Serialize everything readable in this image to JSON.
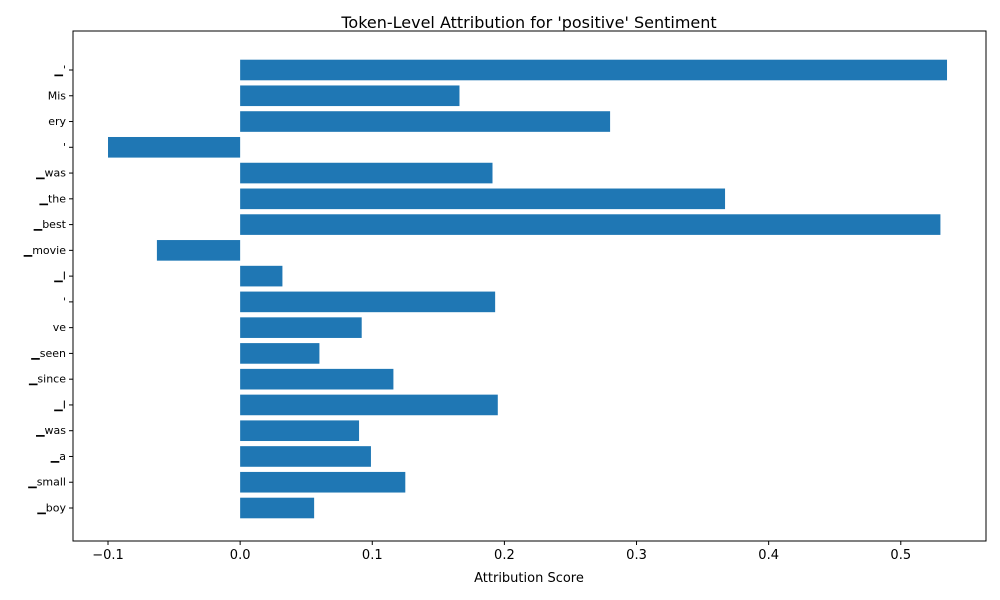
{
  "chart_data": {
    "type": "bar",
    "orientation": "horizontal",
    "title": "Token-Level Attribution for 'positive' Sentiment",
    "xlabel": "Attribution Score",
    "ylabel": "",
    "categories": [
      "▁'",
      "Mis",
      "ery",
      "'",
      "▁was",
      "▁the",
      "▁best",
      "▁movie",
      "▁I",
      "'",
      "ve",
      "▁seen",
      "▁since",
      "▁I",
      "▁was",
      "▁a",
      "▁small",
      "▁boy"
    ],
    "values": [
      0.535,
      0.166,
      0.28,
      -0.1,
      0.191,
      0.367,
      0.53,
      -0.063,
      0.032,
      0.193,
      0.092,
      0.06,
      0.116,
      0.195,
      0.09,
      0.099,
      0.125,
      0.056
    ],
    "xlim": [
      -0.1265,
      0.5645
    ],
    "xticks": [
      -0.1,
      0.0,
      0.1,
      0.2,
      0.3,
      0.4,
      0.5
    ],
    "xtick_labels": [
      "−0.1",
      "0.0",
      "0.1",
      "0.2",
      "0.3",
      "0.4",
      "0.5"
    ],
    "grid": false,
    "bar_color": "#1f77b4"
  }
}
